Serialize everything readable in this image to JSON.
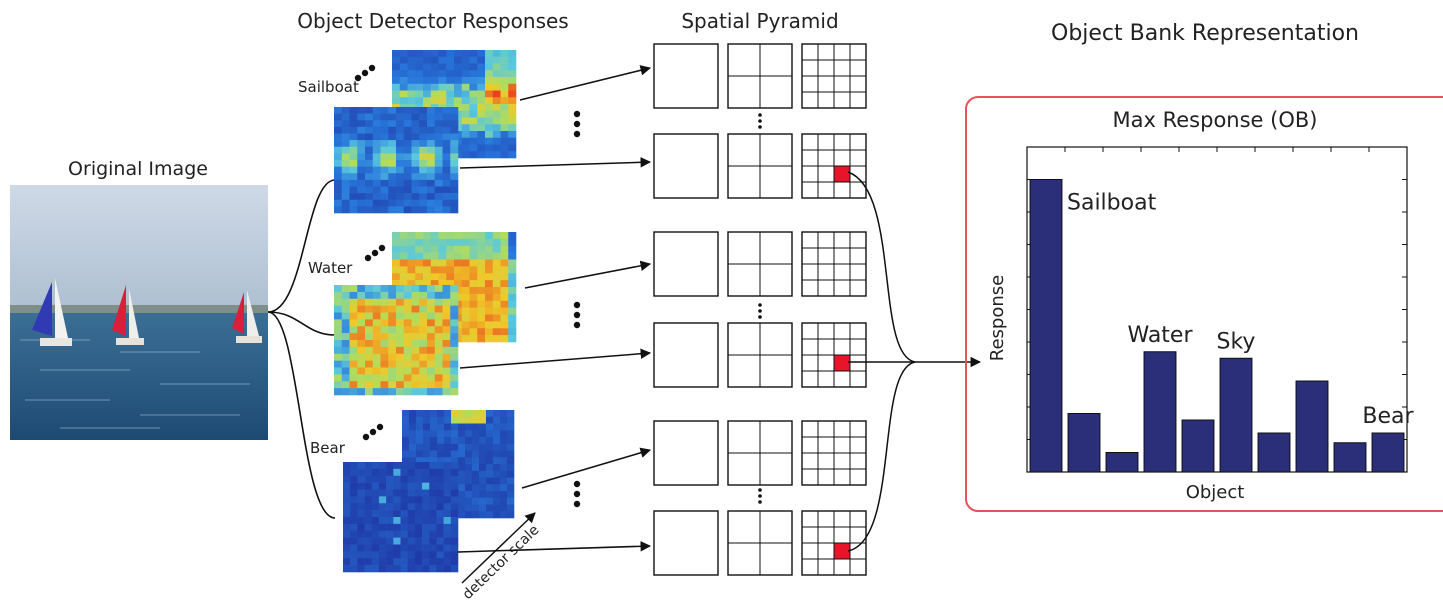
{
  "headings": {
    "original_image": "Original Image",
    "detector_responses": "Object Detector Responses",
    "spatial_pyramid": "Spatial Pyramid",
    "object_bank": "Object Bank Representation"
  },
  "detectors": [
    {
      "label": "Sailboat"
    },
    {
      "label": "Water"
    },
    {
      "label": "Bear"
    }
  ],
  "detector_scale_label": "detector scale",
  "pyramid_levels": [
    1,
    2,
    4
  ],
  "colors": {
    "bar": "#2b2f7a",
    "box_border": "#e8505b",
    "selected_cell": "#e8152a",
    "heatmap_low": "#1e3f9e",
    "heatmap_high": "#e8251f"
  },
  "chart_data": {
    "type": "bar",
    "title": "Max Response (OB)",
    "xlabel": "Object",
    "ylabel": "Response",
    "values": [
      10,
      2.8,
      1.6,
      4.7,
      2.6,
      4.5,
      2.2,
      3.8,
      1.9,
      2.2
    ],
    "ylim": [
      1,
      11
    ],
    "annotations": [
      {
        "bar": 0,
        "text": "Sailboat"
      },
      {
        "bar": 3,
        "text": "Water"
      },
      {
        "bar": 5,
        "text": "Sky"
      },
      {
        "bar": 9,
        "text": "Bear"
      }
    ],
    "grid": false
  }
}
